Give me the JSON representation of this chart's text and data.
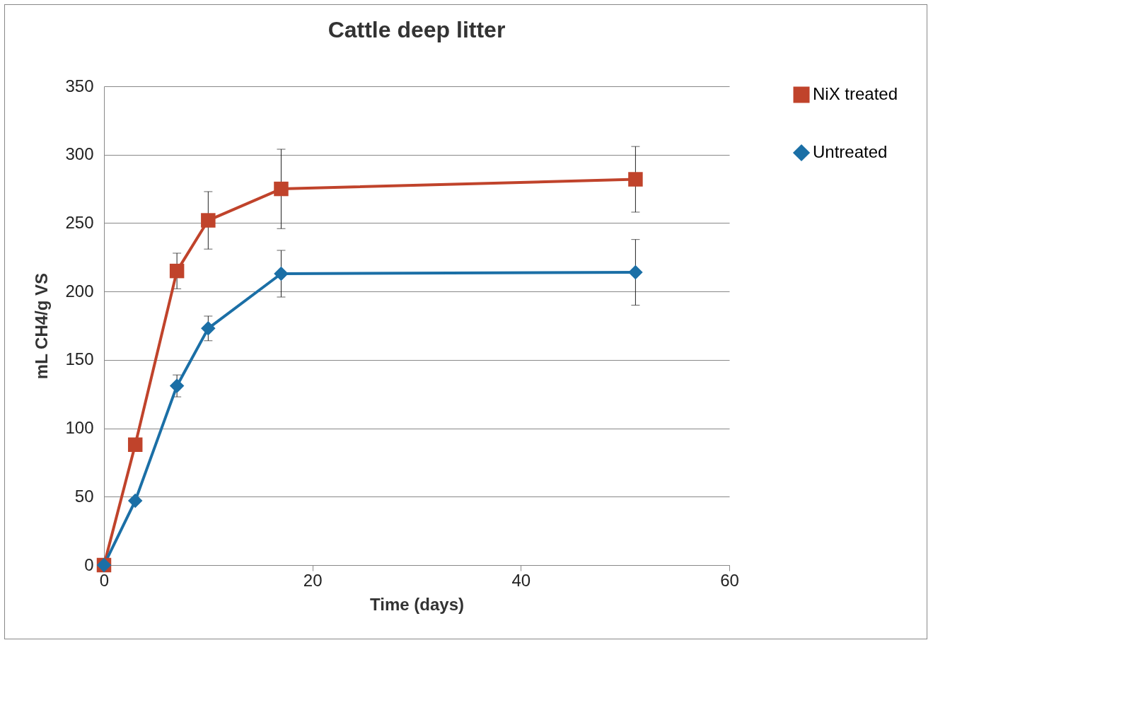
{
  "chart_data": {
    "type": "line",
    "title": "Cattle deep litter",
    "xlabel": "Time (days)",
    "ylabel": "mL CH4/g VS",
    "x": [
      0,
      3,
      7,
      10,
      17,
      51
    ],
    "series": [
      {
        "name": "NiX treated",
        "color": "#c0432b",
        "marker": "square",
        "values": [
          0,
          88,
          215,
          252,
          275,
          282
        ],
        "errors": [
          null,
          null,
          13,
          21,
          29,
          24
        ]
      },
      {
        "name": "Untreated",
        "color": "#1b6fa6",
        "marker": "diamond",
        "values": [
          0,
          47,
          131,
          173,
          213,
          214
        ],
        "errors": [
          null,
          null,
          8,
          9,
          17,
          24
        ]
      }
    ],
    "xlim": [
      0,
      60
    ],
    "xticks": [
      0,
      20,
      40,
      60
    ],
    "ylim": [
      0,
      350
    ],
    "yticks": [
      0,
      50,
      100,
      150,
      200,
      250,
      300,
      350
    ],
    "grid": "y",
    "legend": "right",
    "line_style": "solid"
  }
}
